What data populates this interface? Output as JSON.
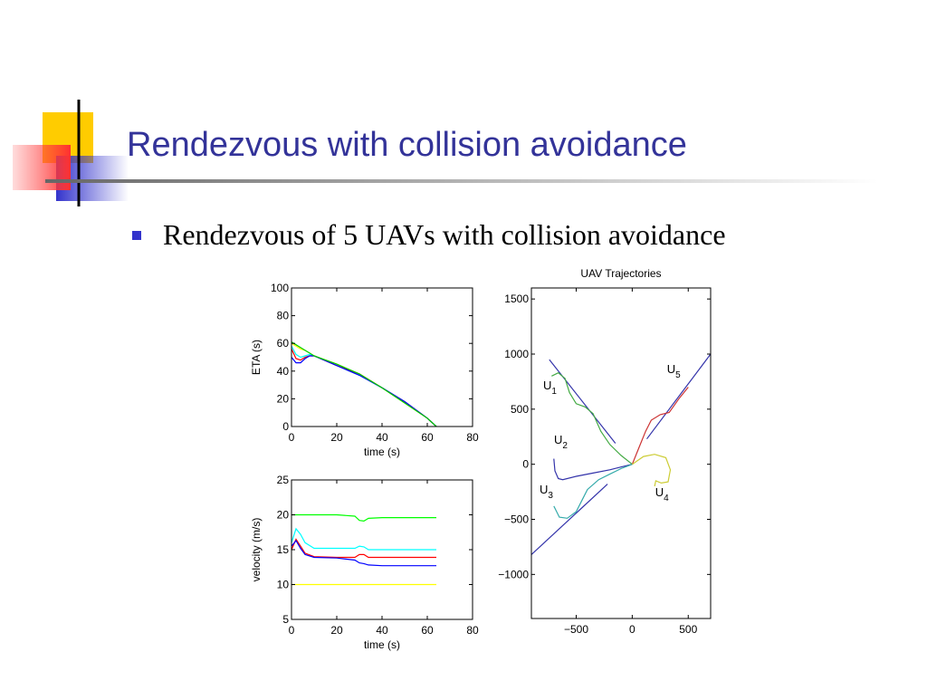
{
  "slide": {
    "title": "Rendezvous with collision avoidance",
    "bullet": "Rendezvous of 5 UAVs with collision avoidance"
  },
  "chart_data": [
    {
      "type": "line",
      "xlabel": "time (s)",
      "ylabel": "ETA (s)",
      "xlim": [
        0,
        80
      ],
      "xticks": [
        0,
        20,
        40,
        60,
        80
      ],
      "ylim": [
        0,
        100
      ],
      "yticks": [
        0,
        20,
        40,
        60,
        80,
        100
      ],
      "x": [
        0,
        2,
        4,
        6,
        8,
        10,
        20,
        30,
        40,
        50,
        60,
        64
      ],
      "series": [
        {
          "color": "#ffff00",
          "values": [
            60,
            58,
            56,
            55,
            53,
            51,
            45,
            38,
            28,
            17,
            6,
            0
          ]
        },
        {
          "color": "#00ffff",
          "values": [
            58,
            52,
            50,
            51,
            52,
            51,
            44,
            37,
            28,
            18,
            6,
            0
          ]
        },
        {
          "color": "#ff0000",
          "values": [
            56,
            49,
            48,
            50,
            51,
            51,
            44,
            38,
            28,
            18,
            6,
            0
          ]
        },
        {
          "color": "#0000ff",
          "values": [
            50,
            46,
            46,
            49,
            51,
            51,
            44,
            37,
            28,
            18,
            6,
            0
          ]
        },
        {
          "color": "#00cc00",
          "values": [
            61,
            59,
            57,
            55,
            53,
            51,
            45,
            38,
            28,
            17,
            6,
            0
          ]
        }
      ]
    },
    {
      "type": "line",
      "xlabel": "time (s)",
      "ylabel": "velocity (m/s)",
      "xlim": [
        0,
        80
      ],
      "xticks": [
        0,
        20,
        40,
        60,
        80
      ],
      "ylim": [
        5,
        25
      ],
      "yticks": [
        5,
        10,
        15,
        20,
        25
      ],
      "x": [
        0,
        2,
        4,
        6,
        10,
        20,
        28,
        30,
        32,
        34,
        40,
        50,
        64
      ],
      "series": [
        {
          "color": "#00ff00",
          "values": [
            20,
            20,
            20,
            20,
            20,
            20,
            19.8,
            19.2,
            19.1,
            19.5,
            19.6,
            19.6,
            19.6
          ]
        },
        {
          "color": "#ffff00",
          "values": [
            10,
            10,
            10,
            10,
            10,
            10,
            10,
            10,
            10,
            10,
            10,
            10,
            10
          ]
        },
        {
          "color": "#00ffff",
          "values": [
            16,
            18,
            17.2,
            16,
            15.2,
            15.2,
            15.2,
            15.5,
            15.4,
            15,
            15,
            15,
            15
          ]
        },
        {
          "color": "#ff0000",
          "values": [
            15,
            16.5,
            15.5,
            14.5,
            14,
            13.9,
            13.9,
            14.3,
            14.3,
            13.9,
            13.9,
            13.9,
            13.9
          ]
        },
        {
          "color": "#0000ff",
          "values": [
            15.5,
            16.3,
            15.2,
            14.3,
            13.9,
            13.8,
            13.5,
            13.1,
            13,
            12.8,
            12.7,
            12.7,
            12.7
          ]
        }
      ]
    },
    {
      "type": "line",
      "title": "UAV Trajectories",
      "xlim": [
        -900,
        700
      ],
      "xticks": [
        {
          "value": -500,
          "label": "−500"
        },
        0,
        500
      ],
      "ylim": [
        -1400,
        1600
      ],
      "yticks": [
        {
          "value": -1000,
          "label": "−1000"
        },
        {
          "value": -500,
          "label": "−500"
        },
        0,
        500,
        1000,
        1500
      ],
      "series": [
        {
          "color": "#3333aa",
          "x": [
            -740,
            -150
          ],
          "values": [
            950,
            190
          ]
        },
        {
          "color": "#3333aa",
          "x": [
            -900,
            -220
          ],
          "values": [
            -820,
            -180
          ]
        },
        {
          "color": "#3333aa",
          "x": [
            700,
            130
          ],
          "values": [
            1000,
            230
          ]
        },
        {
          "color": "#44aa44",
          "x": [
            -720,
            -660,
            -600,
            -560,
            -500,
            -420,
            -350,
            -280,
            -200,
            -100,
            0
          ],
          "values": [
            800,
            830,
            780,
            650,
            550,
            520,
            460,
            300,
            180,
            80,
            0
          ]
        },
        {
          "color": "#cc3333",
          "x": [
            500,
            420,
            330,
            250,
            170,
            120,
            60,
            0
          ],
          "values": [
            700,
            600,
            470,
            450,
            400,
            300,
            150,
            0
          ]
        },
        {
          "color": "#3333aa",
          "x": [
            -700,
            -690,
            -660,
            -620,
            -500,
            -350,
            -200,
            -100,
            0
          ],
          "values": [
            50,
            -60,
            -130,
            -140,
            -110,
            -80,
            -50,
            -25,
            0
          ]
        },
        {
          "color": "#33aaaa",
          "x": [
            -700,
            -650,
            -580,
            -500,
            -450,
            -400,
            -300,
            -200,
            -100,
            0
          ],
          "values": [
            -380,
            -480,
            -490,
            -430,
            -330,
            -230,
            -140,
            -90,
            -40,
            0
          ]
        },
        {
          "color": "#cccc33",
          "x": [
            0,
            100,
            200,
            300,
            340,
            320,
            260,
            210,
            200
          ],
          "values": [
            0,
            70,
            90,
            60,
            -50,
            -160,
            -170,
            -150,
            -200
          ]
        }
      ],
      "annotations": [
        {
          "text": "U",
          "sub": "1",
          "x": -795,
          "y": 680
        },
        {
          "text": "U",
          "sub": "2",
          "x": -698,
          "y": 187
        },
        {
          "text": "U",
          "sub": "3",
          "x": -827,
          "y": -265
        },
        {
          "text": "U",
          "sub": "4",
          "x": 205,
          "y": -290
        },
        {
          "text": "U",
          "sub": "5",
          "x": 310,
          "y": 828
        }
      ]
    }
  ]
}
